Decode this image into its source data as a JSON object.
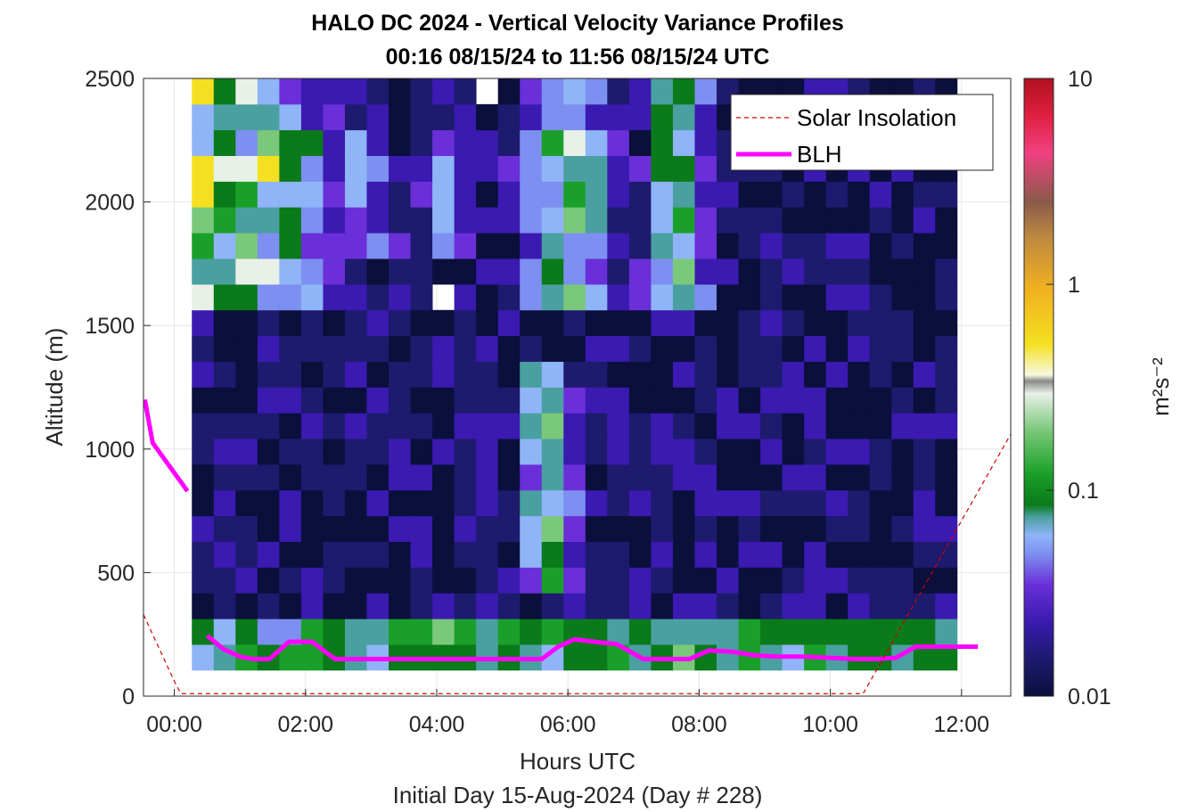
{
  "figure": {
    "title_line1": "HALO DC 2024 - Vertical Velocity Variance Profiles",
    "title_line2": "00:16 08/15/24 to 11:56 08/15/24  UTC",
    "footer": "Initial Day 15-Aug-2024 (Day # 228)",
    "colorbar_label": "m²s⁻²"
  },
  "chart_data": {
    "type": "heatmap",
    "title": "HALO DC 2024 - Vertical Velocity Variance Profiles",
    "subtitle": "00:16 08/15/24 to 11:56 08/15/24  UTC",
    "xlabel": "Hours UTC",
    "ylabel": "Altitude (m)",
    "x_unit": "hours UTC",
    "xlim": [
      -0.47,
      12.75
    ],
    "ylim": [
      0,
      2500
    ],
    "x_ticks": [
      0,
      2,
      4,
      6,
      8,
      10,
      12
    ],
    "x_tick_labels": [
      "00:00",
      "02:00",
      "04:00",
      "06:00",
      "08:00",
      "10:00",
      "12:00"
    ],
    "y_ticks": [
      0,
      500,
      1000,
      1500,
      2000,
      2500
    ],
    "y_tick_labels": [
      "0",
      "500",
      "1000",
      "1500",
      "2000",
      "2500"
    ],
    "grid": true,
    "colorbar": {
      "scale": "log",
      "range": [
        0.01,
        10
      ],
      "ticks": [
        0.01,
        0.1,
        1,
        10
      ],
      "tick_labels": [
        "0.01",
        "0.1",
        "1",
        "10"
      ],
      "label": "m²s⁻²",
      "colors": [
        "#0a0f3c",
        "#1e1a6e",
        "#3a1ab0",
        "#6a2fd8",
        "#7d8ff0",
        "#8fb4f8",
        "#4aa0a0",
        "#0a7a1a",
        "#1aa02a",
        "#7ac87a",
        "#e8f0e8",
        "#f4e020",
        "#f0b020",
        "#c08a40",
        "#8a5a4a",
        "#f04080",
        "#e02040",
        "#b01020"
      ]
    },
    "heatmap": {
      "time_start": 0.267,
      "time_end": 11.933,
      "alt_start": 105,
      "alt_end": 2500,
      "n_time": 35,
      "n_alt": 23,
      "log10_min": -2,
      "log10_max": 1
    },
    "legend": {
      "placement": "top-right",
      "entries": [
        {
          "label": "Solar Insolation",
          "color": "#d40000",
          "style": "dashed"
        },
        {
          "label": "BLH",
          "color": "#ff00ff",
          "style": "solid"
        }
      ]
    },
    "series": [
      {
        "name": "BLH",
        "color": "#ff00ff",
        "segments": [
          {
            "x": [
              -0.45,
              -0.33,
              0.2
            ],
            "y": [
              1200,
              1025,
              830
            ]
          },
          {
            "x": [
              0.5,
              0.75,
              1.0,
              1.2,
              1.45,
              1.75,
              2.1,
              2.45,
              2.7,
              3.1,
              3.5,
              4.0,
              4.5,
              5.0,
              5.3,
              5.6,
              5.85,
              6.1,
              6.4,
              6.75,
              7.15,
              7.5,
              7.85,
              8.15,
              8.5,
              8.85,
              9.2,
              9.6,
              10.0,
              10.35,
              10.7,
              11.0,
              11.3,
              11.6,
              11.9,
              12.25
            ],
            "y": [
              245,
              190,
              160,
              150,
              150,
              220,
              220,
              150,
              150,
              150,
              150,
              150,
              150,
              150,
              150,
              150,
              200,
              230,
              220,
              210,
              150,
              150,
              150,
              185,
              180,
              165,
              160,
              160,
              155,
              150,
              150,
              155,
              200,
              200,
              200,
              200
            ]
          }
        ]
      },
      {
        "name": "Solar Insolation",
        "color": "#d40000",
        "x": [
          -0.47,
          0.0,
          0.1,
          10.1,
          10.5,
          12.75
        ],
        "y": [
          330,
          60,
          10,
          10,
          10,
          1060
        ]
      }
    ]
  }
}
